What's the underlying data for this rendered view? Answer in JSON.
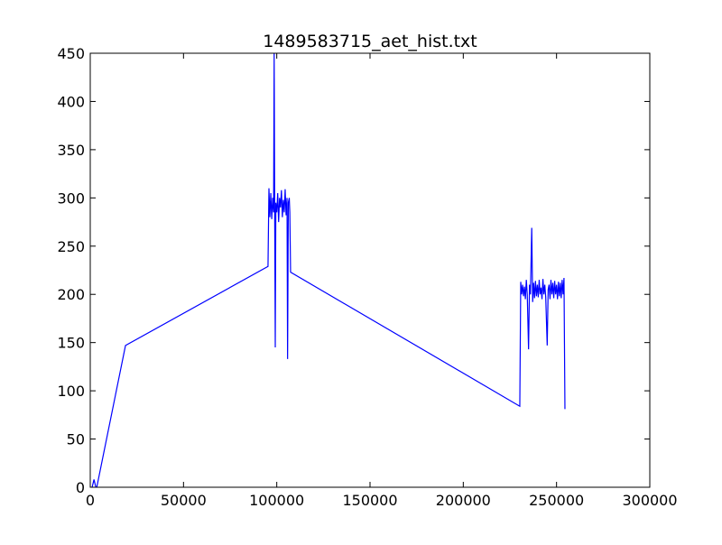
{
  "chart_data": {
    "type": "line",
    "title": "1489583715_aet_hist.txt",
    "x": [
      1000,
      2000,
      3000,
      3500,
      18900,
      95300,
      95800,
      96300,
      96800,
      97300,
      97800,
      98300,
      98600,
      98900,
      99200,
      99500,
      100000,
      100500,
      101000,
      101500,
      102000,
      102500,
      103000,
      103500,
      104000,
      104500,
      105000,
      105500,
      105800,
      106200,
      106700,
      107000,
      107400,
      230300,
      230800,
      231300,
      231800,
      232300,
      232800,
      233300,
      233800,
      234300,
      235000,
      235500,
      236000,
      236700,
      237200,
      237700,
      238200,
      238700,
      239200,
      239700,
      240200,
      240700,
      241200,
      241700,
      242200,
      242700,
      243200,
      243700,
      244200,
      245000,
      245500,
      246000,
      246500,
      247000,
      247500,
      248000,
      248500,
      249000,
      249500,
      250000,
      250500,
      251000,
      251500,
      252000,
      252500,
      253000,
      253500,
      254000,
      254500
    ],
    "series": [
      {
        "color": "#0000ff",
        "values": [
          0,
          8,
          0,
          0,
          147,
          229,
          310,
          280,
          305,
          278,
          300,
          285,
          450,
          280,
          145,
          295,
          285,
          305,
          275,
          300,
          290,
          308,
          280,
          298,
          285,
          309,
          282,
          300,
          133,
          295,
          300,
          285,
          223,
          84,
          213,
          200,
          210,
          198,
          208,
          195,
          215,
          200,
          143,
          210,
          200,
          269,
          192,
          212,
          196,
          214,
          198,
          210,
          197,
          215,
          200,
          207,
          195,
          216,
          200,
          210,
          197,
          147,
          205,
          210,
          195,
          215,
          200,
          212,
          196,
          214,
          200,
          210,
          195,
          213,
          198,
          212,
          196,
          215,
          200,
          217,
          81
        ]
      }
    ],
    "xlim": [
      0,
      300000
    ],
    "xticks": [
      0,
      50000,
      100000,
      150000,
      200000,
      250000,
      300000
    ],
    "ylim": [
      0,
      450
    ],
    "yticks": [
      0,
      50,
      100,
      150,
      200,
      250,
      300,
      350,
      400,
      450
    ]
  }
}
